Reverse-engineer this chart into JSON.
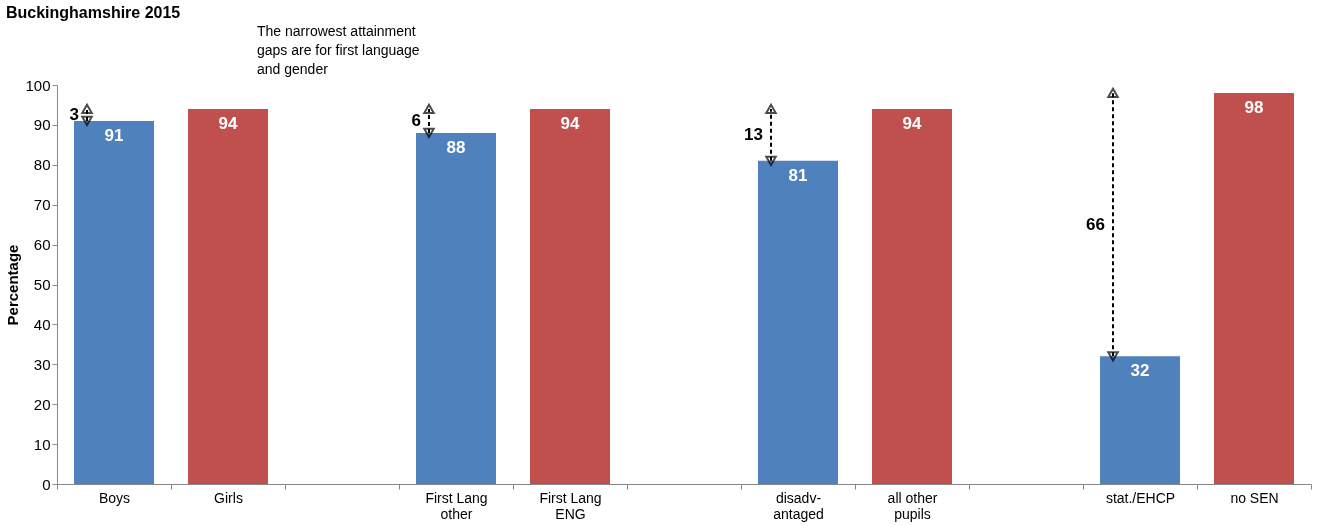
{
  "chart_data": {
    "type": "bar",
    "title": "Buckinghamshire 2015",
    "ylabel": "Percentage",
    "categories": [
      "Boys",
      "Girls",
      null,
      "First Lang other",
      "First Lang ENG",
      null,
      "disadv-antaged",
      "all other pupils",
      null,
      "stat./EHCP",
      "no SEN"
    ],
    "values": [
      91,
      94,
      null,
      88,
      94,
      null,
      81,
      94,
      null,
      32,
      98
    ],
    "colors": [
      "#4f81bd",
      "#c0504d",
      "#4f81bd",
      "#4f81bd",
      "#c0504d",
      "#4f81bd",
      "#4f81bd",
      "#c0504d",
      "#4f81bd",
      "#4f81bd",
      "#c0504d"
    ],
    "ylim": [
      0,
      100
    ],
    "yticks": [
      0,
      10,
      20,
      30,
      40,
      50,
      60,
      70,
      80,
      90,
      100
    ],
    "data_labels": true,
    "grid": false,
    "annotations": [
      "3",
      "6",
      "13",
      "66",
      "The narrowest attainment gaps are for first language and gender"
    ]
  }
}
